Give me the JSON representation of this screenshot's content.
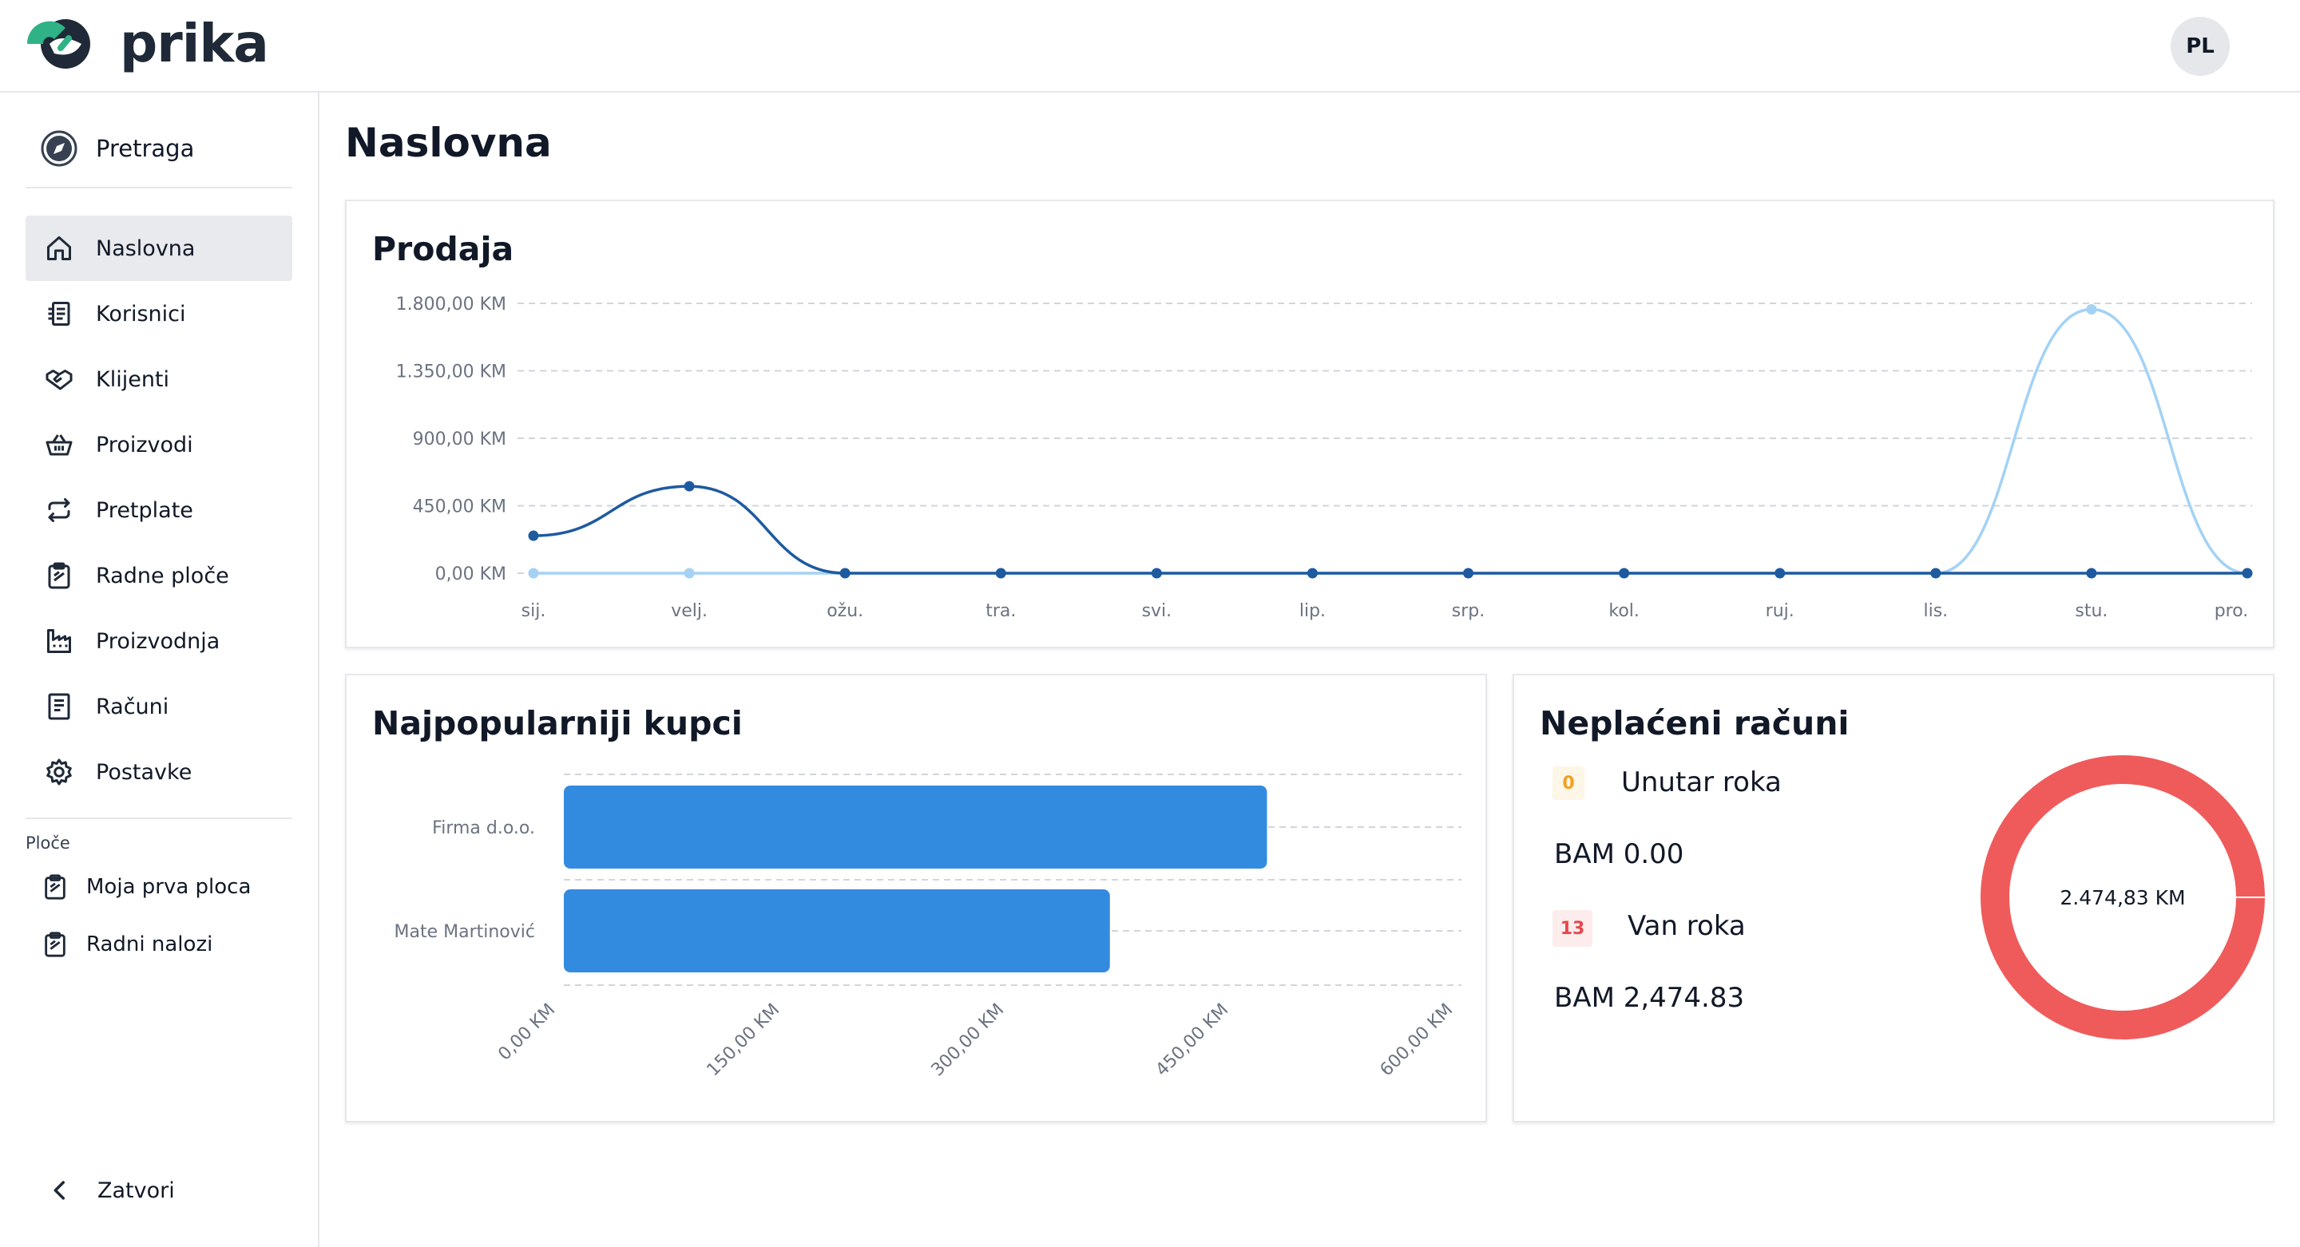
{
  "brand": {
    "name": "prika",
    "accent_green": "#2fb286",
    "dark": "#1f2937"
  },
  "user": {
    "initials": "PL"
  },
  "sidebar": {
    "search_label": "Pretraga",
    "items": [
      {
        "label": "Naslovna",
        "icon": "home-icon",
        "active": true
      },
      {
        "label": "Korisnici",
        "icon": "users-icon"
      },
      {
        "label": "Klijenti",
        "icon": "handshake-icon"
      },
      {
        "label": "Proizvodi",
        "icon": "basket-icon"
      },
      {
        "label": "Pretplate",
        "icon": "repeat-icon"
      },
      {
        "label": "Radne ploče",
        "icon": "clipboard-icon"
      },
      {
        "label": "Proizvodnja",
        "icon": "factory-icon"
      },
      {
        "label": "Računi",
        "icon": "receipt-icon"
      },
      {
        "label": "Postavke",
        "icon": "gear-icon"
      }
    ],
    "boards_section": "Ploče",
    "boards": [
      {
        "label": "Moja prva ploca",
        "icon": "clipboard-icon"
      },
      {
        "label": "Radni nalozi",
        "icon": "clipboard-icon"
      }
    ],
    "close_label": "Zatvori"
  },
  "page": {
    "title": "Naslovna"
  },
  "sales": {
    "title": "Prodaja",
    "chart_data": {
      "type": "line",
      "categories": [
        "sij.",
        "velj.",
        "ožu.",
        "tra.",
        "svi.",
        "lip.",
        "srp.",
        "kol.",
        "ruj.",
        "lis.",
        "stu.",
        "pro."
      ],
      "y_ticks": [
        "0,00 KM",
        "450,00 KM",
        "900,00 KM",
        "1.350,00 KM",
        "1.800,00 KM"
      ],
      "ylim": [
        0,
        1800
      ],
      "series": [
        {
          "name": "series-dark",
          "color": "#1e5aa0",
          "values": [
            250,
            580,
            0,
            0,
            0,
            0,
            0,
            0,
            0,
            0,
            0,
            0
          ]
        },
        {
          "name": "series-light",
          "color": "#a3d2f5",
          "values": [
            0,
            0,
            0,
            0,
            0,
            0,
            0,
            0,
            0,
            0,
            1760,
            0
          ]
        }
      ]
    }
  },
  "top_customers": {
    "title": "Najpopularniji kupci",
    "chart_data": {
      "type": "bar",
      "orientation": "horizontal",
      "categories": [
        "Firma d.o.o.",
        "Mate Martinović"
      ],
      "values": [
        470,
        365
      ],
      "x_ticks": [
        "0,00 KM",
        "150,00 KM",
        "300,00 KM",
        "450,00 KM",
        "600,00 KM"
      ],
      "xlim": [
        0,
        600
      ],
      "color": "#338be0"
    }
  },
  "unpaid": {
    "title": "Neplaćeni računi",
    "within": {
      "count": "0",
      "label": "Unutar roka",
      "amount": "BAM 0.00",
      "badge_bg": "#fef6e6",
      "badge_fg": "#f0a020"
    },
    "overdue": {
      "count": "13",
      "label": "Van roka",
      "amount": "BAM 2,474.83",
      "badge_bg": "#fdecec",
      "badge_fg": "#e5484d"
    },
    "chart_data": {
      "type": "pie",
      "variant": "donut",
      "center_label": "2.474,83 KM",
      "slices": [
        {
          "name": "Van roka",
          "value": 2474.83,
          "color": "#ef5b5b"
        },
        {
          "name": "Unutar roka",
          "value": 0,
          "color": "#f0a020"
        }
      ]
    }
  }
}
